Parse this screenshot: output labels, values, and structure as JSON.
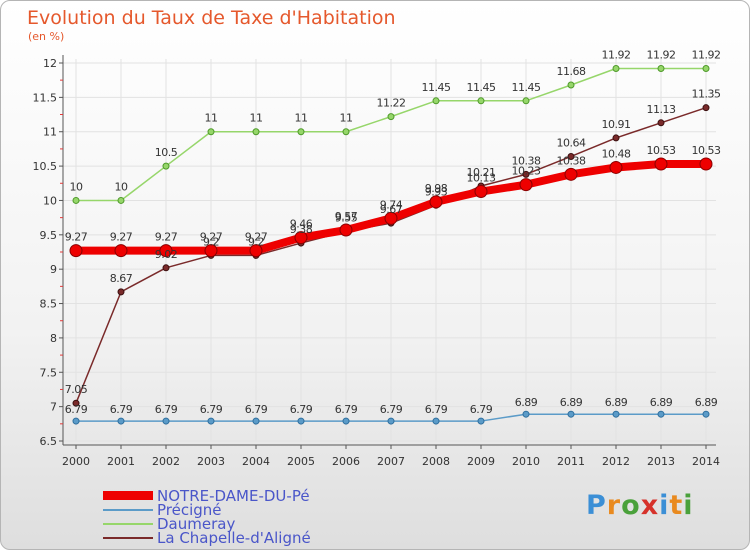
{
  "title": "Evolution du Taux de Taxe d'Habitation",
  "unit_label": "(en %)",
  "brand": {
    "text": "Proxiti",
    "colors": [
      "#3b8fd6",
      "#e98a1f",
      "#4aa13b",
      "#d6322b",
      "#3b8fd6",
      "#e98a1f",
      "#4aa13b"
    ]
  },
  "chart_data": {
    "type": "line",
    "title": "Evolution du Taux de Taxe d'Habitation",
    "ylabel": "(en %)",
    "xlabel": "",
    "x": [
      "2000",
      "2001",
      "2002",
      "2003",
      "2004",
      "2005",
      "2006",
      "2007",
      "2008",
      "2009",
      "2010",
      "2011",
      "2012",
      "2013",
      "2014"
    ],
    "ylim": [
      6.5,
      12
    ],
    "yticks": [
      6.5,
      7,
      7.5,
      8,
      8.5,
      9,
      9.5,
      10,
      10.5,
      11,
      11.5,
      12
    ],
    "ytick_labels": [
      "6.5",
      "7",
      "7.5",
      "8",
      "8.5",
      "9",
      "9.5",
      "10",
      "10.5",
      "11",
      "11.5",
      "12"
    ],
    "legend_position": "bottom-left",
    "series": [
      {
        "name": "NOTRE-DAME-DU-Pé",
        "color": "#ee0000",
        "values": [
          9.27,
          9.27,
          9.27,
          9.27,
          9.27,
          9.46,
          9.57,
          9.74,
          9.98,
          10.13,
          10.23,
          10.38,
          10.48,
          10.53,
          10.53
        ],
        "labels": [
          "9.27",
          "9.27",
          "9.27",
          "9.27",
          "9.27",
          "9.46",
          "9.57",
          "9.74",
          "9.98",
          "10.13",
          "10.23",
          "10.38",
          "10.48",
          "10.53",
          "10.53"
        ]
      },
      {
        "name": "Précigné",
        "color": "#5b9bc8",
        "values": [
          6.79,
          6.79,
          6.79,
          6.79,
          6.79,
          6.79,
          6.79,
          6.79,
          6.79,
          6.79,
          6.89,
          6.89,
          6.89,
          6.89,
          6.89
        ],
        "labels": [
          "6.79",
          "6.79",
          "6.79",
          "6.79",
          "6.79",
          "6.79",
          "6.79",
          "6.79",
          "6.79",
          "6.79",
          "6.89",
          "6.89",
          "6.89",
          "6.89",
          "6.89"
        ]
      },
      {
        "name": "Daumeray",
        "color": "#96d66a",
        "values": [
          10,
          10,
          10.5,
          11,
          11,
          11,
          11,
          11.22,
          11.45,
          11.45,
          11.45,
          11.68,
          11.92,
          11.92,
          11.92
        ],
        "labels": [
          "10",
          "10",
          "10.5",
          "11",
          "11",
          "11",
          "11",
          "11.22",
          "11.45",
          "11.45",
          "11.45",
          "11.68",
          "11.92",
          "11.92",
          "11.92"
        ]
      },
      {
        "name": "La Chapelle-d'Aligné",
        "color": "#7a2a2a",
        "values": [
          7.05,
          8.67,
          9.02,
          9.2,
          9.2,
          9.38,
          9.55,
          9.67,
          9.93,
          10.21,
          10.38,
          10.64,
          10.91,
          11.13,
          11.35
        ],
        "labels": [
          "7.05",
          "8.67",
          "9.02",
          "9.2",
          "9.2",
          "9.38",
          "9.55",
          "9.67",
          "9.93",
          "10.21",
          "10.38",
          "10.64",
          "10.91",
          "11.13",
          "11.35"
        ]
      }
    ]
  }
}
